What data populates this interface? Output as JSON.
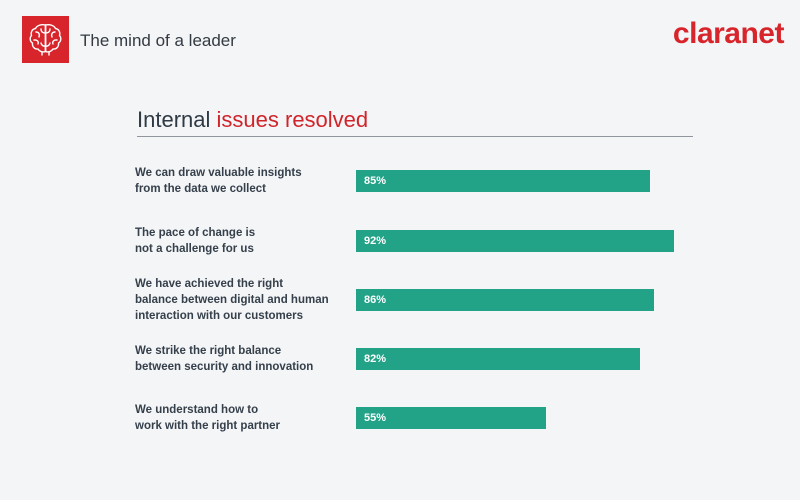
{
  "header": {
    "title": "The mind of a leader",
    "brand": "claranet",
    "logo_icon": "brain-icon",
    "brand_color": "#d8252b"
  },
  "section": {
    "title_plain": "Internal",
    "title_accent": "issues resolved"
  },
  "colors": {
    "bar": "#22a286",
    "accent": "#d0242a"
  },
  "chart_data": {
    "type": "bar",
    "orientation": "horizontal",
    "title": "Internal issues resolved",
    "categories": [
      "We can draw valuable insights\nfrom the data we collect",
      "The pace of change is\nnot a challenge for us",
      "We have achieved the right\nbalance between digital and human\ninteraction with our customers",
      "We strike the right balance\nbetween security and innovation",
      "We understand how to\nwork with the right partner"
    ],
    "values": [
      85,
      92,
      86,
      82,
      55
    ],
    "value_labels": [
      "85%",
      "92%",
      "86%",
      "82%",
      "55%"
    ],
    "unit": "%",
    "xlim": [
      0,
      100
    ]
  }
}
